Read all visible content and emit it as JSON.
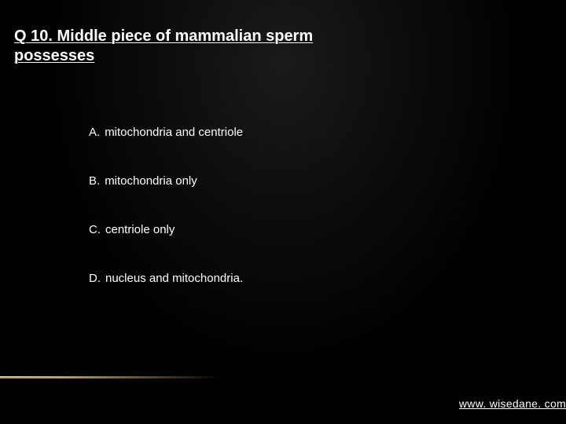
{
  "question": {
    "number": "Q 10.",
    "text_line1": "Q 10. Middle piece of mammalian sperm",
    "text_line2": "possesses"
  },
  "options": [
    {
      "letter": "A.",
      "text": "mitochondria and centriole"
    },
    {
      "letter": "B.",
      "text": "mitochondria only"
    },
    {
      "letter": "C.",
      "text": "centriole only"
    },
    {
      "letter": "D.",
      "text": "nucleus and mitochondria."
    }
  ],
  "footer": "www. wisedane. com",
  "styling": {
    "background_gradient_center": "#1a1a1a",
    "background_gradient_edge": "#000000",
    "text_color": "#ffffff",
    "title_fontsize": 20,
    "option_fontsize": 15,
    "footer_fontsize": 14,
    "gold_line_color": "#c9a43a",
    "gold_line_highlight": "#f0d080",
    "option_spacing": 45,
    "title_font_weight": "bold"
  }
}
